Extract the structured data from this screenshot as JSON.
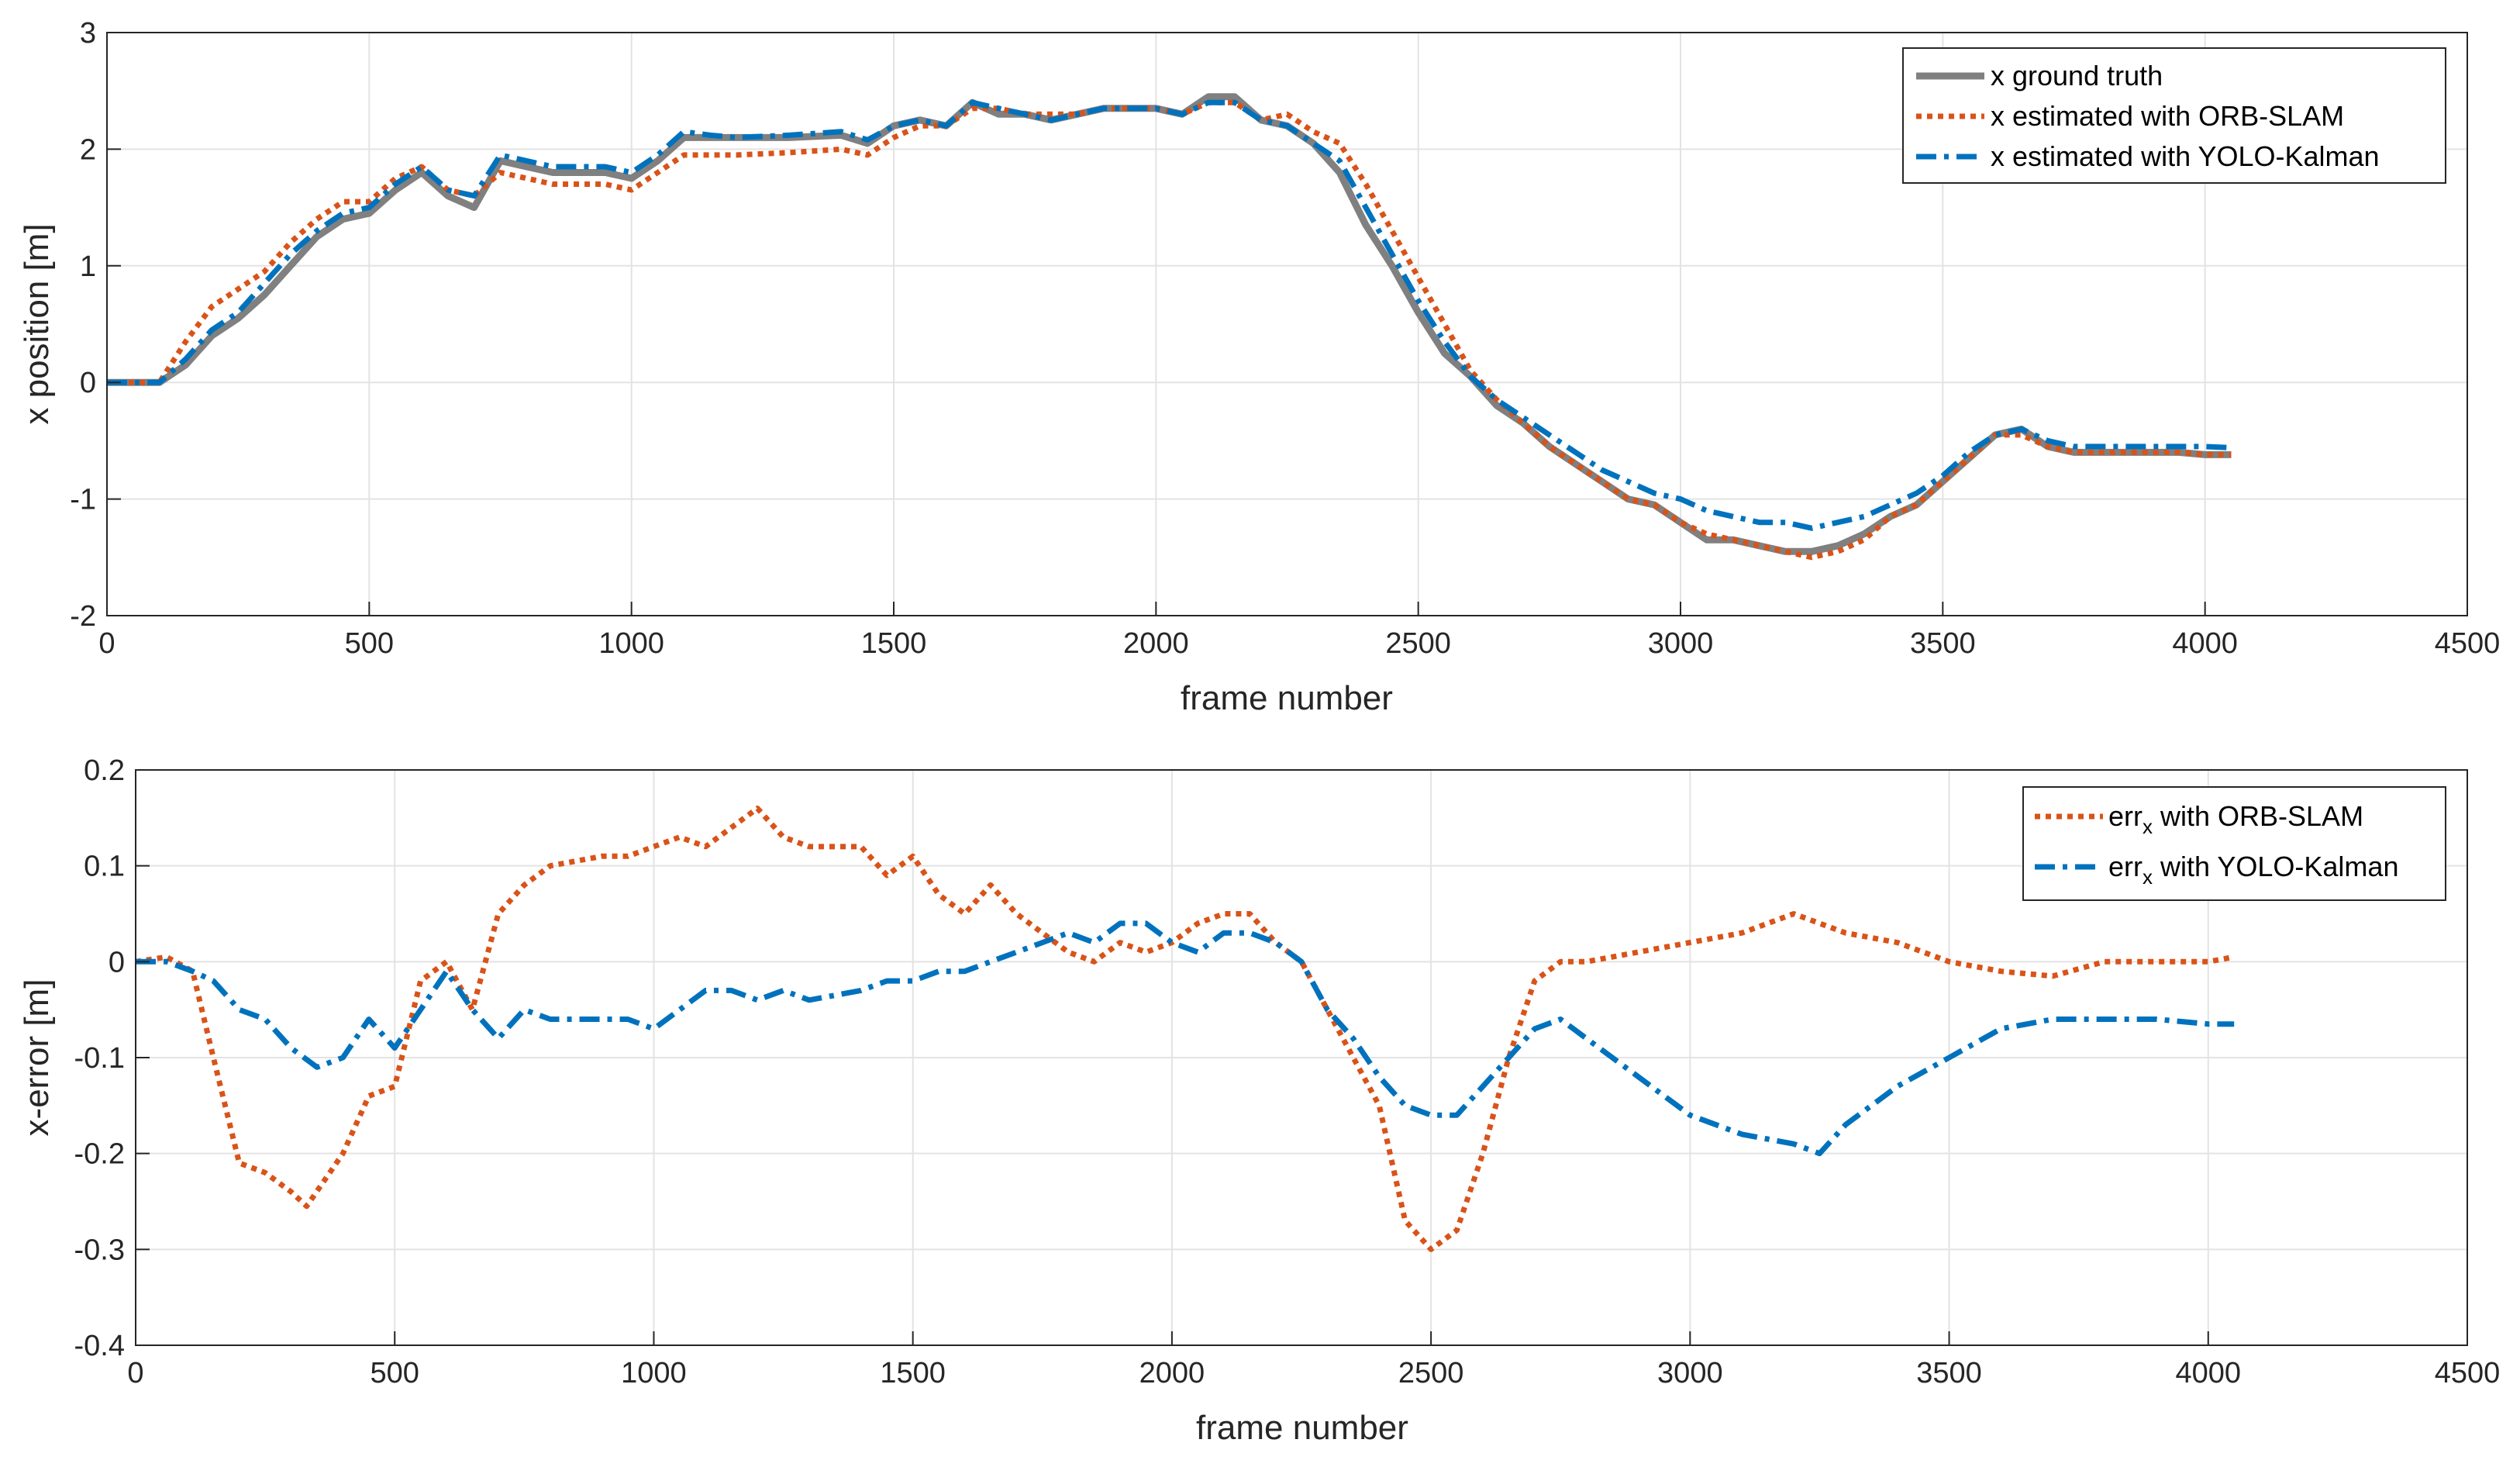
{
  "chart_data": [
    {
      "type": "line",
      "xlabel": "frame number",
      "ylabel": "x position [m]",
      "xlim": [
        0,
        4500
      ],
      "ylim": [
        -2,
        3
      ],
      "xticks": [
        0,
        500,
        1000,
        1500,
        2000,
        2500,
        3000,
        3500,
        4000,
        4500
      ],
      "yticks": [
        -2,
        -1,
        0,
        1,
        2,
        3
      ],
      "xtick_labels": [
        "0",
        "500",
        "1000",
        "1500",
        "2000",
        "2500",
        "3000",
        "3500",
        "4000",
        "4500"
      ],
      "ytick_labels": [
        "-2",
        "-1",
        "0",
        "1",
        "2",
        "3"
      ],
      "grid": true,
      "legend_position": "top-right",
      "series": [
        {
          "name": "x ground truth",
          "color": "#808080",
          "style": "solid",
          "x": [
            0,
            100,
            150,
            200,
            250,
            300,
            350,
            400,
            450,
            500,
            550,
            600,
            650,
            700,
            750,
            800,
            850,
            900,
            950,
            1000,
            1050,
            1100,
            1150,
            1200,
            1300,
            1400,
            1450,
            1500,
            1550,
            1600,
            1650,
            1700,
            1750,
            1800,
            1850,
            1900,
            1950,
            2000,
            2050,
            2100,
            2150,
            2200,
            2250,
            2300,
            2350,
            2400,
            2450,
            2500,
            2550,
            2600,
            2650,
            2700,
            2750,
            2800,
            2850,
            2900,
            2950,
            3000,
            3050,
            3100,
            3150,
            3200,
            3250,
            3300,
            3350,
            3400,
            3450,
            3500,
            3550,
            3600,
            3650,
            3700,
            3750,
            3800,
            3850,
            3900,
            3950,
            4000,
            4050
          ],
          "y": [
            0,
            0,
            0.15,
            0.4,
            0.55,
            0.75,
            1.0,
            1.25,
            1.4,
            1.45,
            1.65,
            1.8,
            1.6,
            1.5,
            1.9,
            1.85,
            1.8,
            1.8,
            1.8,
            1.75,
            1.9,
            2.1,
            2.1,
            2.1,
            2.1,
            2.12,
            2.05,
            2.2,
            2.25,
            2.2,
            2.4,
            2.3,
            2.3,
            2.25,
            2.3,
            2.35,
            2.35,
            2.35,
            2.3,
            2.45,
            2.45,
            2.25,
            2.2,
            2.05,
            1.8,
            1.35,
            1.0,
            0.6,
            0.25,
            0.05,
            -0.2,
            -0.35,
            -0.55,
            -0.7,
            -0.85,
            -1.0,
            -1.05,
            -1.2,
            -1.35,
            -1.35,
            -1.4,
            -1.45,
            -1.45,
            -1.4,
            -1.3,
            -1.15,
            -1.05,
            -0.85,
            -0.65,
            -0.45,
            -0.4,
            -0.55,
            -0.6,
            -0.6,
            -0.6,
            -0.6,
            -0.6,
            -0.62,
            -0.62
          ]
        },
        {
          "name": "x estimated with ORB-SLAM",
          "color": "#D95319",
          "style": "dotted",
          "x": [
            0,
            100,
            150,
            200,
            250,
            300,
            350,
            400,
            450,
            500,
            550,
            600,
            650,
            700,
            750,
            800,
            850,
            900,
            950,
            1000,
            1050,
            1100,
            1150,
            1200,
            1300,
            1400,
            1450,
            1500,
            1550,
            1600,
            1650,
            1700,
            1750,
            1800,
            1850,
            1900,
            1950,
            2000,
            2050,
            2100,
            2150,
            2200,
            2250,
            2300,
            2350,
            2400,
            2450,
            2500,
            2550,
            2600,
            2650,
            2700,
            2750,
            2800,
            2850,
            2900,
            2950,
            3000,
            3050,
            3100,
            3150,
            3200,
            3250,
            3300,
            3350,
            3400,
            3450,
            3500,
            3550,
            3600,
            3650,
            3700,
            3750,
            3800,
            3850,
            3900,
            3950,
            4000,
            4050
          ],
          "y": [
            0,
            0,
            0.35,
            0.65,
            0.8,
            0.95,
            1.2,
            1.4,
            1.55,
            1.55,
            1.75,
            1.85,
            1.65,
            1.6,
            1.8,
            1.75,
            1.7,
            1.7,
            1.7,
            1.65,
            1.8,
            1.95,
            1.95,
            1.95,
            1.97,
            2.0,
            1.95,
            2.1,
            2.2,
            2.2,
            2.35,
            2.35,
            2.3,
            2.3,
            2.3,
            2.35,
            2.35,
            2.35,
            2.3,
            2.4,
            2.4,
            2.25,
            2.3,
            2.15,
            2.05,
            1.7,
            1.3,
            0.9,
            0.5,
            0.1,
            -0.15,
            -0.35,
            -0.55,
            -0.7,
            -0.85,
            -1.0,
            -1.05,
            -1.2,
            -1.3,
            -1.35,
            -1.4,
            -1.45,
            -1.5,
            -1.45,
            -1.35,
            -1.15,
            -1.05,
            -0.85,
            -0.65,
            -0.45,
            -0.45,
            -0.55,
            -0.6,
            -0.6,
            -0.6,
            -0.6,
            -0.6,
            -0.62,
            -0.62
          ]
        },
        {
          "name": "x estimated with YOLO-Kalman",
          "color": "#0072BD",
          "style": "dashdot",
          "x": [
            0,
            100,
            150,
            200,
            250,
            300,
            350,
            400,
            450,
            500,
            550,
            600,
            650,
            700,
            750,
            800,
            850,
            900,
            950,
            1000,
            1050,
            1100,
            1150,
            1200,
            1300,
            1400,
            1450,
            1500,
            1550,
            1600,
            1650,
            1700,
            1750,
            1800,
            1850,
            1900,
            1950,
            2000,
            2050,
            2100,
            2150,
            2200,
            2250,
            2300,
            2350,
            2400,
            2450,
            2500,
            2550,
            2600,
            2650,
            2700,
            2750,
            2800,
            2850,
            2900,
            2950,
            3000,
            3050,
            3100,
            3150,
            3200,
            3250,
            3300,
            3350,
            3400,
            3450,
            3500,
            3550,
            3600,
            3650,
            3700,
            3750,
            3800,
            3850,
            3900,
            3950,
            4000,
            4050
          ],
          "y": [
            0,
            0,
            0.2,
            0.45,
            0.6,
            0.85,
            1.1,
            1.3,
            1.45,
            1.5,
            1.7,
            1.85,
            1.65,
            1.6,
            1.95,
            1.9,
            1.85,
            1.85,
            1.85,
            1.8,
            1.95,
            2.15,
            2.12,
            2.1,
            2.12,
            2.15,
            2.08,
            2.2,
            2.25,
            2.2,
            2.4,
            2.35,
            2.3,
            2.25,
            2.3,
            2.35,
            2.35,
            2.35,
            2.3,
            2.4,
            2.4,
            2.25,
            2.2,
            2.05,
            1.9,
            1.5,
            1.1,
            0.7,
            0.35,
            0.05,
            -0.15,
            -0.3,
            -0.45,
            -0.6,
            -0.75,
            -0.85,
            -0.95,
            -1.0,
            -1.1,
            -1.15,
            -1.2,
            -1.2,
            -1.25,
            -1.2,
            -1.15,
            -1.05,
            -0.95,
            -0.8,
            -0.6,
            -0.45,
            -0.4,
            -0.5,
            -0.55,
            -0.55,
            -0.55,
            -0.55,
            -0.55,
            -0.55,
            -0.56
          ]
        }
      ]
    },
    {
      "type": "line",
      "xlabel": "frame number",
      "ylabel": "x-error [m]",
      "xlim": [
        0,
        4500
      ],
      "ylim": [
        -0.4,
        0.2
      ],
      "xticks": [
        0,
        500,
        1000,
        1500,
        2000,
        2500,
        3000,
        3500,
        4000,
        4500
      ],
      "yticks": [
        -0.4,
        -0.3,
        -0.2,
        -0.1,
        0,
        0.1,
        0.2
      ],
      "xtick_labels": [
        "0",
        "500",
        "1000",
        "1500",
        "2000",
        "2500",
        "3000",
        "3500",
        "4000",
        "4500"
      ],
      "ytick_labels": [
        "-0.4",
        "-0.3",
        "-0.2",
        "-0.1",
        "0",
        "0.1",
        "0.2"
      ],
      "grid": true,
      "legend_position": "top-right",
      "series": [
        {
          "name_main": "err",
          "name_sub": "x",
          "name_rest": " with ORB-SLAM",
          "color": "#D95319",
          "style": "dotted",
          "x": [
            0,
            60,
            110,
            150,
            200,
            250,
            300,
            330,
            400,
            450,
            500,
            550,
            600,
            650,
            700,
            750,
            800,
            900,
            950,
            1000,
            1050,
            1100,
            1150,
            1200,
            1250,
            1300,
            1400,
            1450,
            1500,
            1550,
            1600,
            1650,
            1700,
            1750,
            1800,
            1850,
            1900,
            1950,
            2000,
            2050,
            2100,
            2150,
            2200,
            2250,
            2300,
            2350,
            2400,
            2450,
            2500,
            2550,
            2600,
            2650,
            2700,
            2750,
            2800,
            3000,
            3100,
            3200,
            3300,
            3400,
            3500,
            3600,
            3700,
            3800,
            3900,
            4000,
            4050
          ],
          "y": [
            0,
            0.005,
            -0.01,
            -0.1,
            -0.21,
            -0.22,
            -0.24,
            -0.255,
            -0.2,
            -0.14,
            -0.13,
            -0.02,
            0.0,
            -0.05,
            0.05,
            0.08,
            0.1,
            0.11,
            0.11,
            0.12,
            0.13,
            0.12,
            0.14,
            0.16,
            0.13,
            0.12,
            0.12,
            0.09,
            0.11,
            0.07,
            0.05,
            0.08,
            0.05,
            0.03,
            0.01,
            0.0,
            0.02,
            0.01,
            0.02,
            0.04,
            0.05,
            0.05,
            0.02,
            0.0,
            -0.05,
            -0.1,
            -0.15,
            -0.27,
            -0.3,
            -0.28,
            -0.2,
            -0.1,
            -0.02,
            0.0,
            0.0,
            0.02,
            0.03,
            0.05,
            0.03,
            0.02,
            0.0,
            -0.01,
            -0.015,
            0.0,
            0.0,
            0.0,
            0.005
          ]
        },
        {
          "name_main": "err",
          "name_sub": "x",
          "name_rest": " with YOLO-Kalman",
          "color": "#0072BD",
          "style": "dashdot",
          "x": [
            0,
            60,
            110,
            150,
            200,
            250,
            300,
            350,
            400,
            450,
            500,
            550,
            600,
            650,
            700,
            750,
            800,
            900,
            950,
            1000,
            1050,
            1100,
            1150,
            1200,
            1250,
            1300,
            1400,
            1450,
            1500,
            1550,
            1600,
            1650,
            1700,
            1750,
            1800,
            1850,
            1900,
            1950,
            2000,
            2050,
            2100,
            2150,
            2200,
            2250,
            2300,
            2350,
            2400,
            2450,
            2500,
            2550,
            2600,
            2650,
            2700,
            2750,
            2800,
            2900,
            3000,
            3100,
            3200,
            3250,
            3300,
            3400,
            3500,
            3600,
            3700,
            3800,
            3900,
            4000,
            4050
          ],
          "y": [
            0,
            0.0,
            -0.01,
            -0.02,
            -0.05,
            -0.06,
            -0.09,
            -0.11,
            -0.1,
            -0.06,
            -0.09,
            -0.05,
            -0.01,
            -0.05,
            -0.08,
            -0.05,
            -0.06,
            -0.06,
            -0.06,
            -0.07,
            -0.05,
            -0.03,
            -0.03,
            -0.04,
            -0.03,
            -0.04,
            -0.03,
            -0.02,
            -0.02,
            -0.01,
            -0.01,
            0.0,
            0.01,
            0.02,
            0.03,
            0.02,
            0.04,
            0.04,
            0.02,
            0.01,
            0.03,
            0.03,
            0.02,
            0.0,
            -0.05,
            -0.08,
            -0.12,
            -0.15,
            -0.16,
            -0.16,
            -0.13,
            -0.1,
            -0.07,
            -0.06,
            -0.08,
            -0.12,
            -0.16,
            -0.18,
            -0.19,
            -0.2,
            -0.17,
            -0.13,
            -0.1,
            -0.07,
            -0.06,
            -0.06,
            -0.06,
            -0.065,
            -0.065
          ]
        }
      ]
    }
  ]
}
